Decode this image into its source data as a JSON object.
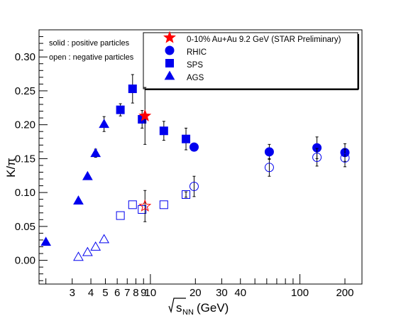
{
  "chart_data": {
    "type": "scatter",
    "xscale": "log",
    "xlim": [
      1.8,
      260
    ],
    "ylim": [
      -0.035,
      0.34
    ],
    "xlabel_prefix": "√s",
    "xlabel_sub": "NN",
    "xlabel_unit": "(GeV)",
    "ylabel": "K/π",
    "x_ticks": [
      {
        "value": 3,
        "label": "3"
      },
      {
        "value": 4,
        "label": "4"
      },
      {
        "value": 5,
        "label": "5"
      },
      {
        "value": 6,
        "label": "6"
      },
      {
        "value": 7,
        "label": "7"
      },
      {
        "value": 8,
        "label": "8"
      },
      {
        "value": 9,
        "label": "9"
      },
      {
        "value": 10,
        "label": "10"
      },
      {
        "value": 20,
        "label": "20"
      },
      {
        "value": 30,
        "label": "30"
      },
      {
        "value": 40,
        "label": "40"
      },
      {
        "value": 100,
        "label": "100"
      },
      {
        "value": 200,
        "label": "200"
      }
    ],
    "x_minor_ticks": [
      2,
      50,
      60,
      70,
      80,
      90
    ],
    "y_ticks": [
      {
        "value": 0.0,
        "label": "0.00"
      },
      {
        "value": 0.05,
        "label": "0.05"
      },
      {
        "value": 0.1,
        "label": "0.10"
      },
      {
        "value": 0.15,
        "label": "0.15"
      },
      {
        "value": 0.2,
        "label": "0.20"
      },
      {
        "value": 0.25,
        "label": "0.25"
      },
      {
        "value": 0.3,
        "label": "0.30"
      }
    ],
    "annotations": [
      "solid : positive particles",
      "open : negative particles"
    ],
    "series": [
      {
        "name": "0-10% Au+Au 9.2 GeV (STAR Preliminary)",
        "marker": "star",
        "fill": "solid",
        "color": "#ff0000",
        "points": [
          {
            "x": 9.2,
            "y": 0.213,
            "err": 0.042
          }
        ]
      },
      {
        "name": "0-10% Au+Au 9.2 GeV (STAR Preliminary)",
        "marker": "star",
        "fill": "open",
        "color": "#ff0000",
        "points": [
          {
            "x": 9.2,
            "y": 0.08,
            "err": 0.023
          }
        ]
      },
      {
        "name": "RHIC",
        "marker": "circle",
        "fill": "solid",
        "color": "#0000ee",
        "points": [
          {
            "x": 19.6,
            "y": 0.167,
            "err": 0.0
          },
          {
            "x": 62.4,
            "y": 0.16,
            "err": 0.011
          },
          {
            "x": 130,
            "y": 0.166,
            "err": 0.016
          },
          {
            "x": 200,
            "y": 0.159,
            "err": 0.013
          }
        ]
      },
      {
        "name": "RHIC",
        "marker": "circle",
        "fill": "open",
        "color": "#0000ee",
        "points": [
          {
            "x": 19.6,
            "y": 0.109,
            "err": 0.015
          },
          {
            "x": 62.4,
            "y": 0.137,
            "err": 0.013
          },
          {
            "x": 130,
            "y": 0.152,
            "err": 0.013
          },
          {
            "x": 200,
            "y": 0.151,
            "err": 0.013
          }
        ]
      },
      {
        "name": "SPS",
        "marker": "square",
        "fill": "solid",
        "color": "#0000ee",
        "points": [
          {
            "x": 6.3,
            "y": 0.222,
            "err": 0.009
          },
          {
            "x": 7.6,
            "y": 0.253,
            "err": 0.021
          },
          {
            "x": 8.8,
            "y": 0.208,
            "err": 0.013
          },
          {
            "x": 12.3,
            "y": 0.191,
            "err": 0.014
          },
          {
            "x": 17.3,
            "y": 0.179,
            "err": 0.016
          }
        ]
      },
      {
        "name": "SPS",
        "marker": "square",
        "fill": "open",
        "color": "#0000ee",
        "points": [
          {
            "x": 6.3,
            "y": 0.066,
            "err": 0.0
          },
          {
            "x": 7.6,
            "y": 0.082,
            "err": 0.0
          },
          {
            "x": 8.8,
            "y": 0.075,
            "err": 0.0
          },
          {
            "x": 12.3,
            "y": 0.082,
            "err": 0.0
          },
          {
            "x": 17.3,
            "y": 0.097,
            "err": 0.004
          }
        ]
      },
      {
        "name": "AGS",
        "marker": "triangle",
        "fill": "solid",
        "color": "#0000ee",
        "points": [
          {
            "x": 2.0,
            "y": 0.027,
            "err": 0.0
          },
          {
            "x": 3.3,
            "y": 0.088,
            "err": 0.0
          },
          {
            "x": 3.8,
            "y": 0.124,
            "err": 0.0
          },
          {
            "x": 4.3,
            "y": 0.158,
            "err": 0.006
          },
          {
            "x": 4.9,
            "y": 0.201,
            "err": 0.011
          }
        ]
      },
      {
        "name": "AGS",
        "marker": "triangle",
        "fill": "open",
        "color": "#0000ee",
        "points": [
          {
            "x": 3.3,
            "y": 0.005,
            "err": 0.0
          },
          {
            "x": 3.8,
            "y": 0.012,
            "err": 0.0
          },
          {
            "x": 4.3,
            "y": 0.02,
            "err": 0.0
          },
          {
            "x": 4.9,
            "y": 0.031,
            "err": 0.0
          }
        ]
      }
    ],
    "legend": {
      "position": "top-right",
      "entries": [
        {
          "label": "0-10% Au+Au 9.2 GeV (STAR Preliminary)",
          "marker": "star",
          "color": "#ff0000"
        },
        {
          "label": "RHIC",
          "marker": "circle",
          "color": "#0000ee"
        },
        {
          "label": "SPS",
          "marker": "square",
          "color": "#0000ee"
        },
        {
          "label": "AGS",
          "marker": "triangle",
          "color": "#0000ee"
        }
      ]
    }
  }
}
